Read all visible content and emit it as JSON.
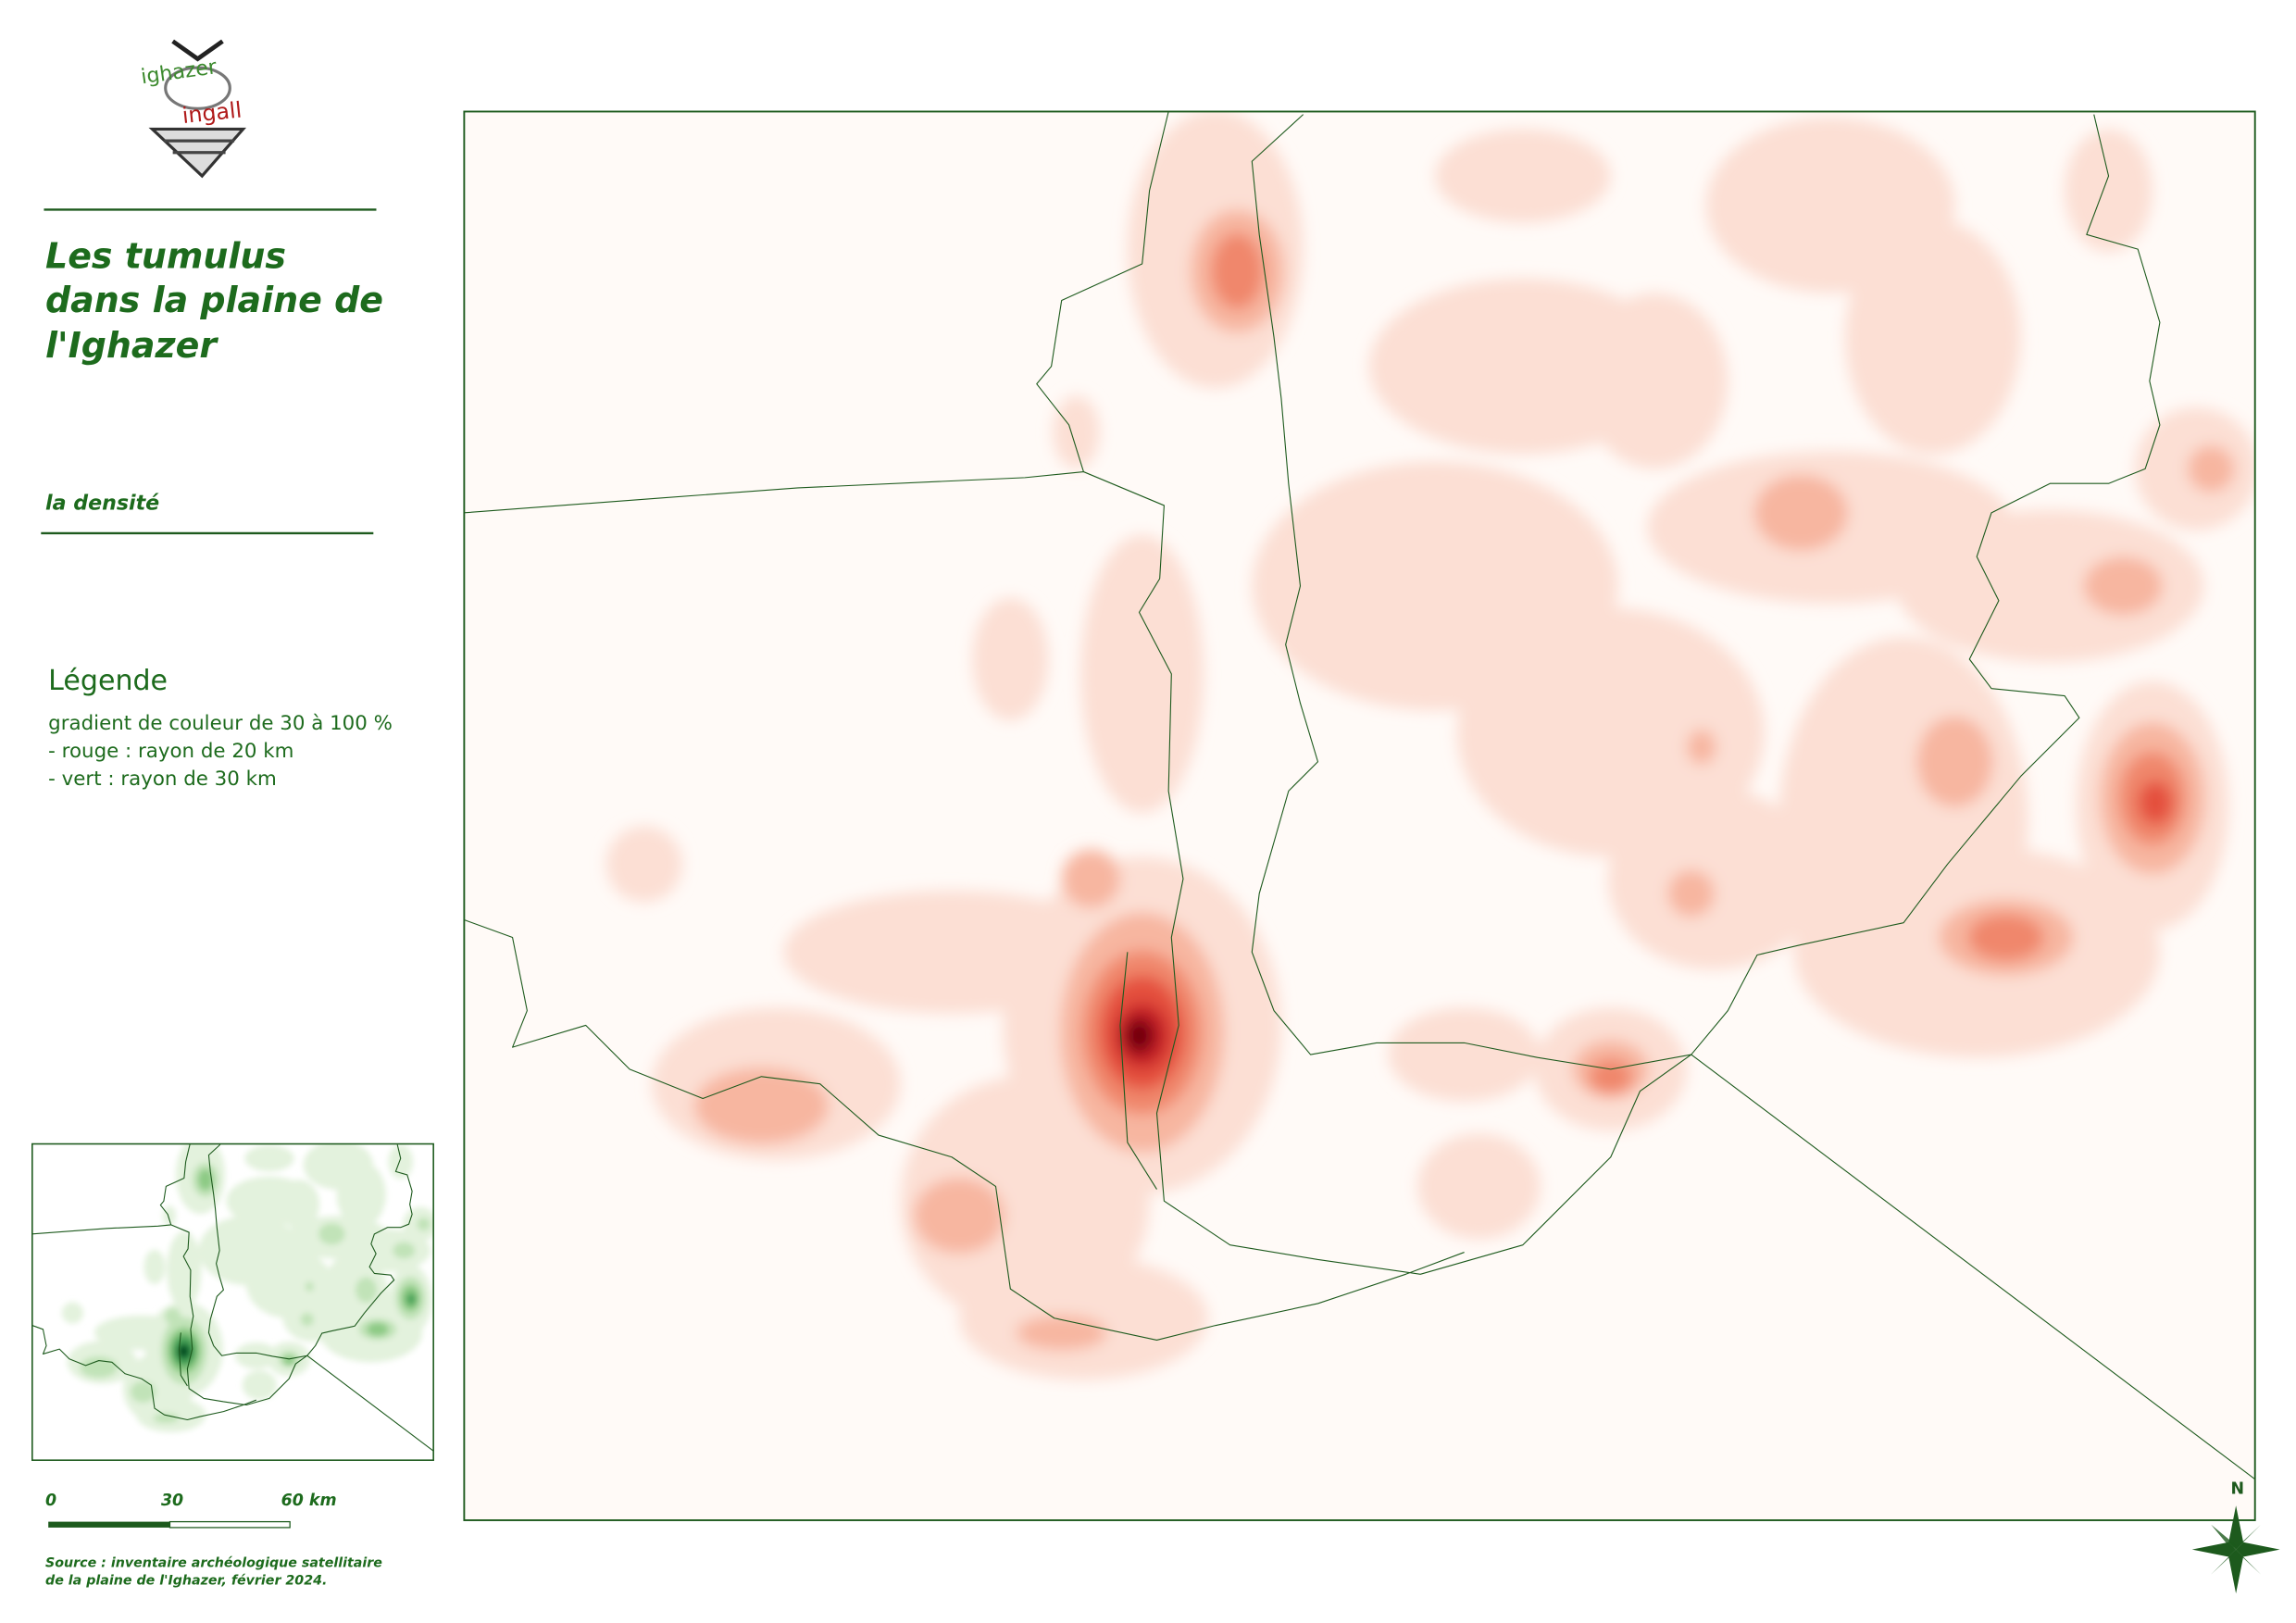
{
  "logo": {
    "top": "ighazer",
    "bottom": "ingall"
  },
  "title": [
    "Les tumulus",
    "dans la plaine de",
    "l'Ighazer"
  ],
  "subtitle": "la densité",
  "legend": {
    "heading": "Légende",
    "lines": [
      "gradient de couleur de 30 à 100 %",
      "- rouge : rayon de 20 km",
      "- vert : rayon de 30 km"
    ]
  },
  "scale": {
    "labels": [
      "0",
      "30",
      "60 km"
    ]
  },
  "source": [
    "Source : inventaire archéologique satellitaire",
    "de la plaine de l'Ighazer, février 2024."
  ],
  "north": "N"
}
